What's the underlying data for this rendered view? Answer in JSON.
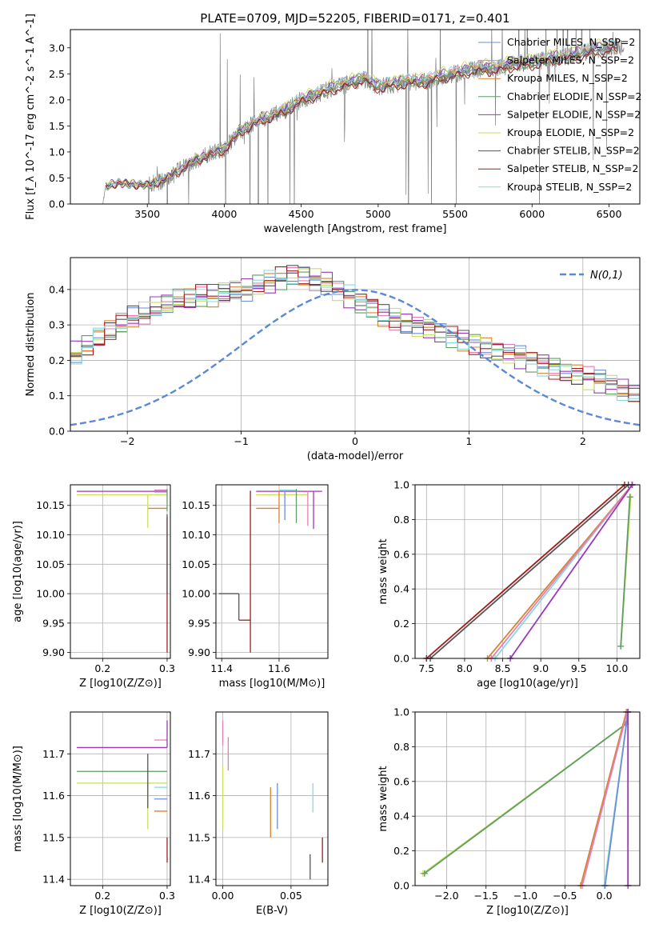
{
  "colors": {
    "Chabrier MILES": "#6d8fd6",
    "Salpeter MILES": "#e37fb6",
    "Kroupa MILES": "#d8842d",
    "Chabrier ELODIE": "#5e9e62",
    "Salpeter ELODIE": "#9a38b8",
    "Kroupa ELODIE": "#ccde5a",
    "Chabrier STELIB": "#555555",
    "Salpeter STELIB": "#a31c1c",
    "Kroupa STELIB": "#8ad9de",
    "data": "#808080",
    "normal": "#5b88d8"
  },
  "chart_data": [
    {
      "type": "line",
      "title": "PLATE=0709, MJD=52205, FIBERID=0171, z=0.401",
      "xlabel": "wavelength [Angstrom, rest frame]",
      "ylabel": "Flux [f_λ 10^-17 erg cm^-2 s^-1 A^-1]",
      "xlim": [
        3000,
        6700
      ],
      "ylim": [
        0,
        3.35
      ],
      "xticks": [
        3500,
        4000,
        4500,
        5000,
        5500,
        6000,
        6500
      ],
      "yticks": [
        0.0,
        0.5,
        1.0,
        1.5,
        2.0,
        2.5,
        3.0
      ],
      "legend_position": "top-right",
      "legend": [
        "Chabrier MILES",
        "Salpeter MILES",
        "Kroupa MILES",
        "Chabrier ELODIE",
        "Salpeter ELODIE",
        "Kroupa ELODIE",
        "Chabrier STELIB",
        "Salpeter STELIB",
        "Kroupa STELIB"
      ],
      "legend_suffix": ", N_SSP=2",
      "continuum": {
        "x": [
          3210,
          3230,
          3300,
          3400,
          3500,
          3600,
          3700,
          3800,
          3900,
          4000,
          4100,
          4200,
          4300,
          4400,
          4500,
          4600,
          4700,
          4800,
          4900,
          5000,
          5100,
          5200,
          5300,
          5400,
          5500,
          5600,
          5700,
          5800,
          5900,
          6000,
          6100,
          6200,
          6300,
          6400,
          6500
        ],
        "y": [
          0.0,
          0.34,
          0.4,
          0.38,
          0.36,
          0.45,
          0.62,
          0.82,
          0.95,
          1.05,
          1.38,
          1.56,
          1.68,
          1.8,
          2.0,
          2.1,
          2.23,
          2.3,
          2.42,
          2.25,
          2.3,
          2.35,
          2.35,
          2.45,
          2.5,
          2.58,
          2.6,
          2.62,
          2.7,
          2.7,
          2.78,
          2.82,
          2.88,
          2.95,
          3.0
        ]
      },
      "model_offsets": [
        0.02,
        0.05,
        0.0,
        -0.02,
        0.04,
        0.08,
        -0.03,
        -0.05,
        0.06
      ],
      "noise_region": [
        3500,
        6600
      ]
    },
    {
      "type": "step",
      "xlabel": "(data-model)/error",
      "ylabel": "Normed distribution",
      "xlim": [
        -2.5,
        2.5
      ],
      "ylim": [
        0,
        0.49
      ],
      "xticks": [
        -2,
        -1,
        0,
        1,
        2
      ],
      "yticks": [
        0.0,
        0.1,
        0.2,
        0.3,
        0.4
      ],
      "grid": true,
      "legend_position": "top-right",
      "reference_label": "N(0,1)",
      "bin_width": 0.1,
      "base_shape": [
        0.02,
        0.02,
        0.03,
        0.03,
        0.04,
        0.03,
        0.05,
        0.05,
        0.06,
        0.06,
        0.07,
        0.08,
        0.09,
        0.1,
        0.1,
        0.12,
        0.12,
        0.13,
        0.15,
        0.15,
        0.16,
        0.17,
        0.18,
        0.18,
        0.2,
        0.22,
        0.24,
        0.26,
        0.28,
        0.3,
        0.32,
        0.33,
        0.35,
        0.36,
        0.37,
        0.37,
        0.38,
        0.38,
        0.39,
        0.4,
        0.4,
        0.41,
        0.42,
        0.43,
        0.44,
        0.44,
        0.43,
        0.42,
        0.4,
        0.38,
        0.36,
        0.35,
        0.33,
        0.32,
        0.31,
        0.3,
        0.29,
        0.28,
        0.27,
        0.26,
        0.25,
        0.24,
        0.23,
        0.22,
        0.21,
        0.2,
        0.19,
        0.18,
        0.17,
        0.16,
        0.15,
        0.14,
        0.13,
        0.12,
        0.11,
        0.1,
        0.09,
        0.08,
        0.07,
        0.07,
        0.06,
        0.06,
        0.06,
        0.05,
        0.05,
        0.05,
        0.05,
        0.04,
        0.04,
        0.04,
        0.04,
        0.04,
        0.04,
        0.04,
        0.04,
        0.04,
        0.04,
        0.04,
        0.04,
        0.04
      ]
    },
    {
      "type": "scatter",
      "xlabel": "Z [log10(Z/Z⊙)]",
      "ylabel": "age [log10(age/yr)]",
      "xlim": [
        0.15,
        0.305
      ],
      "ylim": [
        9.89,
        10.185
      ],
      "xticks": [
        0.2,
        0.3
      ],
      "yticks": [
        9.9,
        9.95,
        10.0,
        10.05,
        10.1,
        10.15
      ],
      "grid": true,
      "hsegments": [
        {
          "series": "Salpeter ELODIE",
          "y": 10.174,
          "x": [
            0.16,
            0.3
          ]
        },
        {
          "series": "Kroupa ELODIE",
          "y": 10.168,
          "x": [
            0.16,
            0.3
          ]
        },
        {
          "series": "Salpeter MILES",
          "y": 10.176,
          "x": [
            0.28,
            0.3
          ]
        },
        {
          "series": "Kroupa STELIB",
          "y": 10.172,
          "x": [
            0.28,
            0.3
          ]
        },
        {
          "series": "Kroupa MILES",
          "y": 10.145,
          "x": [
            0.27,
            0.3
          ]
        }
      ],
      "vsegments": [
        {
          "series": "Kroupa ELODIE",
          "x": 0.27,
          "y": [
            10.112,
            10.168
          ]
        },
        {
          "series": "Salpeter STELIB",
          "x": 0.3,
          "y": [
            9.9,
            10.13
          ]
        },
        {
          "series": "Chabrier STELIB",
          "x": 0.3,
          "y": [
            10.0,
            10.135
          ]
        },
        {
          "series": "Chabrier ELODIE",
          "x": 0.3,
          "y": [
            10.14,
            10.178
          ]
        }
      ]
    },
    {
      "type": "scatter",
      "xlabel": "mass [log10(M/M⊙)]",
      "ylabel": "",
      "xlim": [
        11.38,
        11.77
      ],
      "ylim": [
        9.89,
        10.185
      ],
      "xticks": [
        11.4,
        11.6
      ],
      "yticks": [
        9.9,
        9.95,
        10.0,
        10.05,
        10.1,
        10.15
      ],
      "grid": true,
      "hsegments": [
        {
          "series": "Chabrier STELIB",
          "y": 10.0,
          "x": [
            11.39,
            11.46
          ]
        },
        {
          "series": "Salpeter STELIB",
          "y": 9.955,
          "x": [
            11.46,
            11.5
          ]
        },
        {
          "series": "Salpeter ELODIE",
          "y": 10.174,
          "x": [
            11.52,
            11.75
          ]
        },
        {
          "series": "Kroupa ELODIE",
          "y": 10.168,
          "x": [
            11.52,
            11.7
          ]
        },
        {
          "series": "Kroupa MILES",
          "y": 10.145,
          "x": [
            11.52,
            11.6
          ]
        },
        {
          "series": "Kroupa STELIB",
          "y": 10.176,
          "x": [
            11.6,
            11.66
          ]
        }
      ],
      "vsegments": [
        {
          "series": "Chabrier STELIB",
          "x": 11.46,
          "y": [
            9.955,
            10.0
          ]
        },
        {
          "series": "Salpeter STELIB",
          "x": 11.5,
          "y": [
            9.9,
            10.175
          ]
        },
        {
          "series": "Kroupa MILES",
          "x": 11.6,
          "y": [
            10.12,
            10.175
          ]
        },
        {
          "series": "Chabrier MILES",
          "x": 11.62,
          "y": [
            10.125,
            10.175
          ]
        },
        {
          "series": "Chabrier ELODIE",
          "x": 11.66,
          "y": [
            10.12,
            10.178
          ]
        },
        {
          "series": "Salpeter MILES",
          "x": 11.7,
          "y": [
            10.115,
            10.174
          ]
        },
        {
          "series": "Salpeter ELODIE",
          "x": 11.72,
          "y": [
            10.11,
            10.174
          ]
        }
      ]
    },
    {
      "type": "line",
      "xlabel": "age [log10(age/yr)]",
      "ylabel": "mass weight",
      "xlim": [
        7.35,
        10.3
      ],
      "ylim": [
        0,
        1.0
      ],
      "xticks": [
        7.5,
        8.0,
        8.5,
        9.0,
        9.5,
        10.0
      ],
      "yticks": [
        0.0,
        0.2,
        0.4,
        0.6,
        0.8,
        1.0
      ],
      "grid": true,
      "series": [
        {
          "name": "Salpeter STELIB",
          "x": [
            7.5,
            10.1
          ],
          "y": [
            0.0,
            1.0
          ]
        },
        {
          "name": "Chabrier STELIB",
          "x": [
            7.55,
            10.15
          ],
          "y": [
            0.0,
            1.0
          ]
        },
        {
          "name": "Kroupa STELIB",
          "x": [
            8.4,
            10.2
          ],
          "y": [
            0.0,
            1.0
          ]
        },
        {
          "name": "Kroupa MILES",
          "x": [
            8.3,
            10.2
          ],
          "y": [
            0.0,
            1.0
          ]
        },
        {
          "name": "Salpeter MILES",
          "x": [
            8.35,
            10.2
          ],
          "y": [
            0.0,
            1.0
          ]
        },
        {
          "name": "Salpeter ELODIE",
          "x": [
            8.6,
            10.2
          ],
          "y": [
            0.0,
            1.0
          ]
        },
        {
          "name": "Kroupa ELODIE",
          "x": [
            10.05,
            10.18
          ],
          "y": [
            0.07,
            0.93
          ]
        },
        {
          "name": "Chabrier ELODIE",
          "x": [
            10.05,
            10.17
          ],
          "y": [
            0.07,
            0.93
          ]
        }
      ]
    },
    {
      "type": "scatter",
      "xlabel": "Z [log10(Z/Z⊙)]",
      "ylabel": "mass [log10(M/M⊙)]",
      "xlim": [
        0.15,
        0.305
      ],
      "ylim": [
        11.385,
        11.8
      ],
      "xticks": [
        0.2,
        0.3
      ],
      "yticks": [
        11.4,
        11.5,
        11.6,
        11.7
      ],
      "grid": true,
      "hsegments": [
        {
          "series": "Salpeter ELODIE",
          "y": 11.715,
          "x": [
            0.16,
            0.3
          ]
        },
        {
          "series": "Chabrier ELODIE",
          "y": 11.658,
          "x": [
            0.16,
            0.3
          ]
        },
        {
          "series": "Kroupa ELODIE",
          "y": 11.63,
          "x": [
            0.16,
            0.3
          ]
        },
        {
          "series": "Salpeter MILES",
          "y": 11.733,
          "x": [
            0.28,
            0.3
          ]
        },
        {
          "series": "Kroupa STELIB",
          "y": 11.62,
          "x": [
            0.28,
            0.3
          ]
        },
        {
          "series": "Chabrier MILES",
          "y": 11.592,
          "x": [
            0.28,
            0.3
          ]
        },
        {
          "series": "Kroupa MILES",
          "y": 11.563,
          "x": [
            0.28,
            0.3
          ]
        }
      ],
      "vsegments": [
        {
          "series": "Kroupa ELODIE",
          "x": 0.27,
          "y": [
            11.52,
            11.63
          ]
        },
        {
          "series": "Chabrier STELIB",
          "x": 0.27,
          "y": [
            11.57,
            11.7
          ]
        },
        {
          "series": "Salpeter ELODIE",
          "x": 0.3,
          "y": [
            11.715,
            11.78
          ]
        },
        {
          "series": "Salpeter STELIB",
          "x": 0.3,
          "y": [
            11.44,
            11.5
          ]
        }
      ]
    },
    {
      "type": "scatter",
      "xlabel": "E(B-V)",
      "ylabel": "",
      "xlim": [
        -0.005,
        0.077
      ],
      "ylim": [
        11.385,
        11.8
      ],
      "xticks": [
        0.0,
        0.05
      ],
      "yticks": [
        11.4,
        11.5,
        11.6,
        11.7
      ],
      "grid": true,
      "vsegments": [
        {
          "series": "Salpeter MILES",
          "x": 0.0,
          "y": [
            11.72,
            11.78
          ]
        },
        {
          "series": "Kroupa ELODIE",
          "x": 0.0,
          "y": [
            11.52,
            11.67
          ]
        },
        {
          "series": "Salpeter MILES",
          "x": 0.004,
          "y": [
            11.66,
            11.74
          ]
        },
        {
          "series": "Kroupa MILES",
          "x": 0.035,
          "y": [
            11.5,
            11.62
          ]
        },
        {
          "series": "Chabrier MILES",
          "x": 0.04,
          "y": [
            11.52,
            11.63
          ]
        },
        {
          "series": "Chabrier STELIB",
          "x": 0.064,
          "y": [
            11.4,
            11.46
          ]
        },
        {
          "series": "Kroupa STELIB",
          "x": 0.066,
          "y": [
            11.56,
            11.63
          ]
        },
        {
          "series": "Salpeter STELIB",
          "x": 0.073,
          "y": [
            11.44,
            11.5
          ]
        }
      ]
    },
    {
      "type": "line",
      "xlabel": "Z [log10(Z/Z⊙)]",
      "ylabel": "mass weight",
      "xlim": [
        -2.4,
        0.45
      ],
      "ylim": [
        0,
        1.0
      ],
      "xticks": [
        -2.0,
        -1.5,
        -1.0,
        -0.5,
        0.0
      ],
      "yticks": [
        0.0,
        0.2,
        0.4,
        0.6,
        0.8,
        1.0
      ],
      "grid": true,
      "series": [
        {
          "name": "Kroupa ELODIE",
          "x": [
            -2.3,
            0.27
          ],
          "y": [
            0.07,
            0.93
          ]
        },
        {
          "name": "Chabrier ELODIE",
          "x": [
            -2.28,
            0.27
          ],
          "y": [
            0.07,
            0.93
          ]
        },
        {
          "name": "Kroupa MILES",
          "x": [
            -0.3,
            0.28
          ],
          "y": [
            0.0,
            1.0
          ]
        },
        {
          "name": "Salpeter MILES",
          "x": [
            -0.28,
            0.29
          ],
          "y": [
            0.0,
            1.0
          ]
        },
        {
          "name": "Kroupa STELIB",
          "x": [
            0.0,
            0.3
          ],
          "y": [
            0.0,
            1.0
          ]
        },
        {
          "name": "Chabrier MILES",
          "x": [
            0.01,
            0.3
          ],
          "y": [
            0.0,
            1.0
          ]
        },
        {
          "name": "Salpeter ELODIE",
          "x": [
            0.3,
            0.3
          ],
          "y": [
            0.0,
            1.0
          ]
        }
      ]
    }
  ]
}
